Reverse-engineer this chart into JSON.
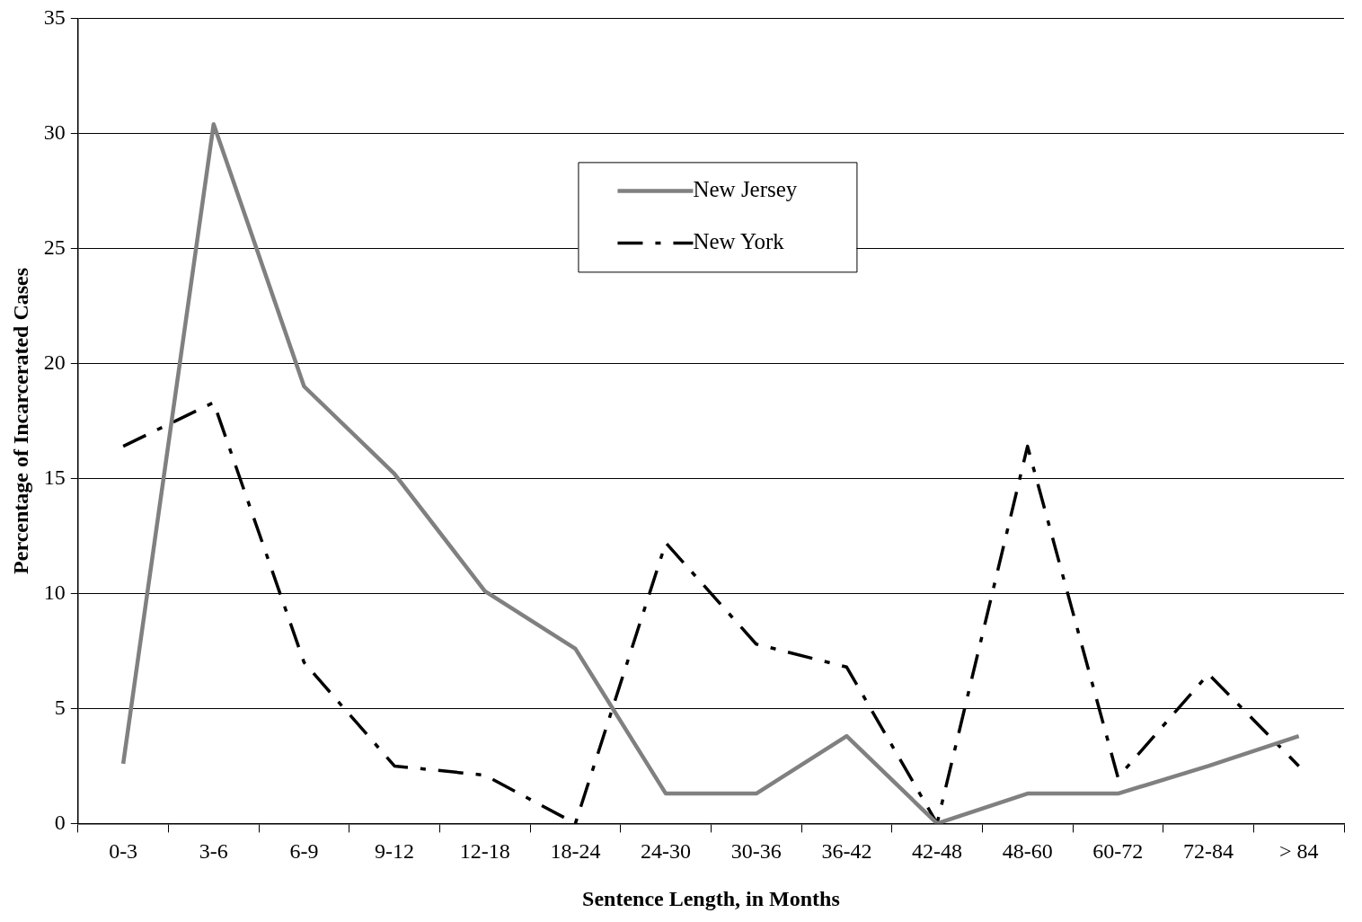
{
  "chart_data": {
    "type": "line",
    "xlabel": "Sentence Length, in Months",
    "ylabel": "Percentage of Incarcerated Cases",
    "categories": [
      "0-3",
      "3-6",
      "6-9",
      "9-12",
      "12-18",
      "18-24",
      "24-30",
      "30-36",
      "36-42",
      "42-48",
      "48-60",
      "60-72",
      "72-84",
      "> 84"
    ],
    "series": [
      {
        "name": "New Jersey",
        "color": "#808080",
        "line_style": "solid",
        "values": [
          2.6,
          30.4,
          19.0,
          15.2,
          10.1,
          7.6,
          1.3,
          1.3,
          3.8,
          0,
          1.3,
          1.3,
          2.5,
          3.8
        ]
      },
      {
        "name": "New York",
        "color": "#000000",
        "line_style": "dashed",
        "values": [
          16.4,
          18.3,
          7.0,
          2.5,
          2.1,
          0,
          12.2,
          7.8,
          6.8,
          0,
          16.4,
          2.0,
          6.5,
          2.5
        ]
      }
    ],
    "ylim": [
      0,
      35
    ],
    "yticks": [
      0,
      5,
      10,
      15,
      20,
      25,
      30,
      35
    ],
    "grid": "y",
    "legend": "top",
    "marker": "none"
  }
}
